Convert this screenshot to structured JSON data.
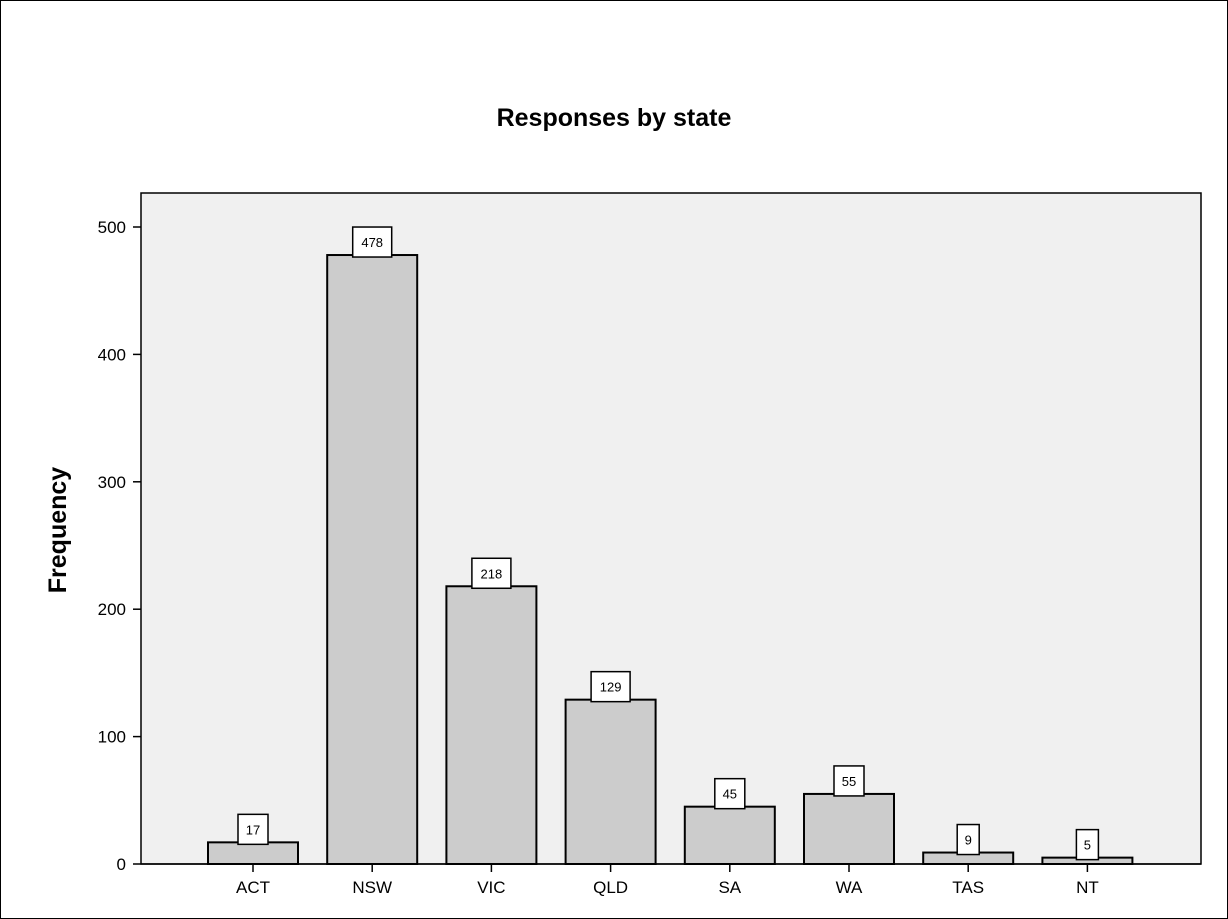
{
  "chart_data": {
    "type": "bar",
    "title": "Responses by state",
    "xlabel": "",
    "ylabel": "Frequency",
    "categories": [
      "ACT",
      "NSW",
      "VIC",
      "QLD",
      "SA",
      "WA",
      "TAS",
      "NT"
    ],
    "values": [
      17,
      478,
      218,
      129,
      45,
      55,
      9,
      5
    ],
    "data_labels": [
      "17",
      "478",
      "218",
      "129",
      "45",
      "55",
      "9",
      "5"
    ],
    "ylim": [
      0,
      500
    ],
    "yticks": [
      0,
      100,
      200,
      300,
      400,
      500
    ],
    "grid": false,
    "legend": "none",
    "colors": {
      "plot_background": "#f0f0f0",
      "bar_fill": "#cccccc",
      "bar_stroke": "#000000"
    }
  }
}
